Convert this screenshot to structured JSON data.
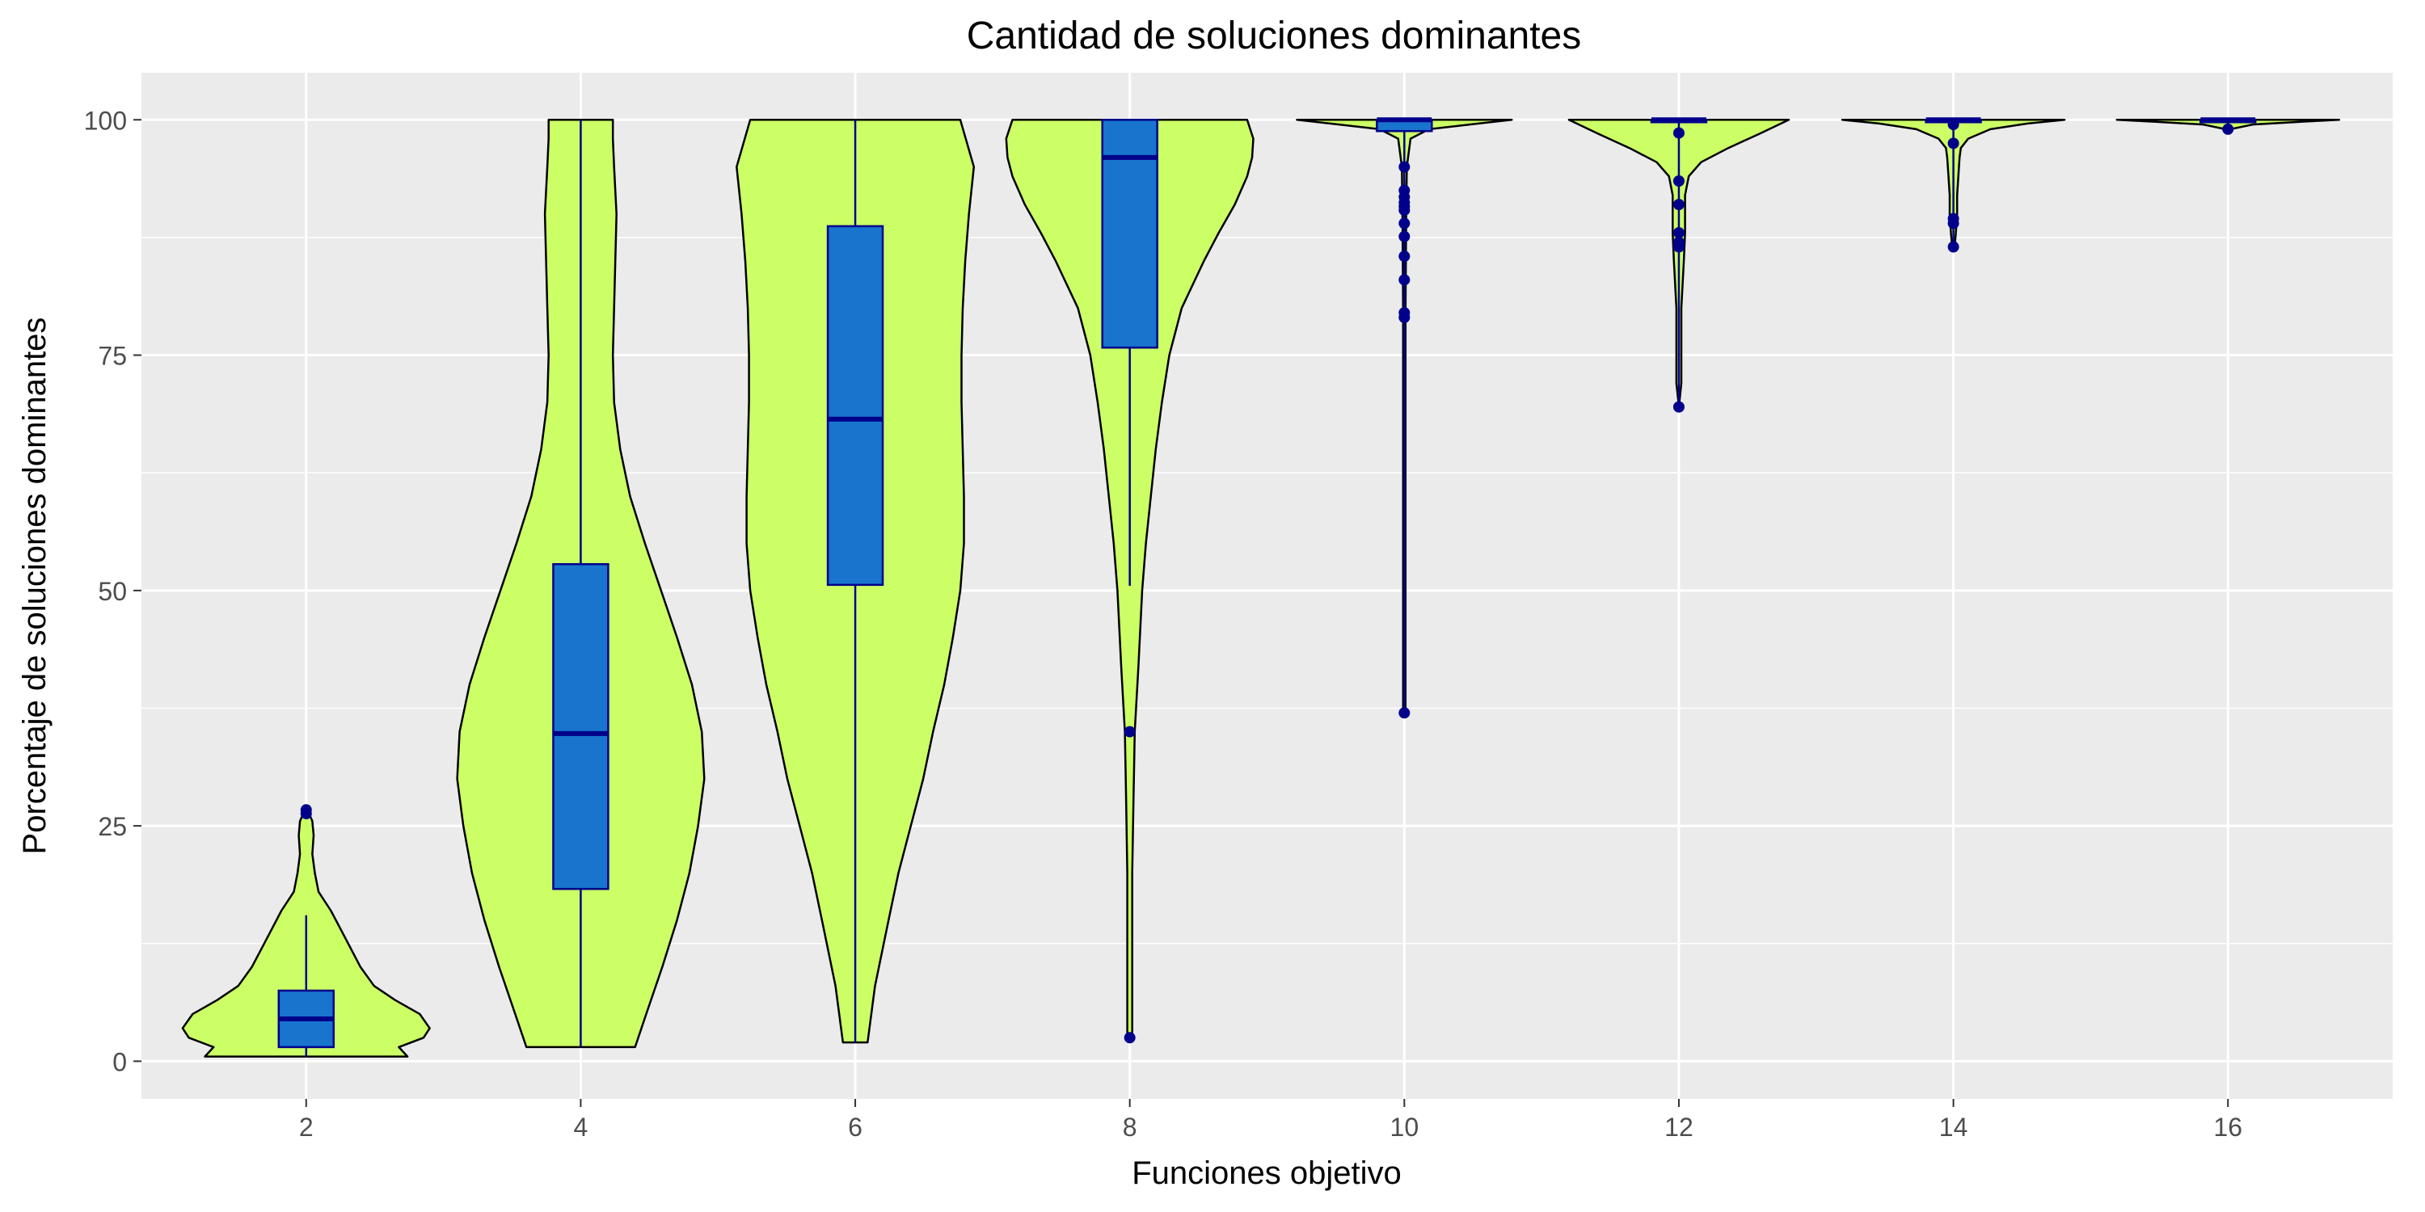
{
  "chart_data": {
    "type": "violin",
    "title": "Cantidad de soluciones dominantes",
    "xlabel": "Funciones objetivo",
    "ylabel": "Porcentaje de soluciones dominantes",
    "categories": [
      "2",
      "4",
      "6",
      "8",
      "10",
      "12",
      "14",
      "16"
    ],
    "x_ticks": [
      "2",
      "4",
      "6",
      "8",
      "10",
      "12",
      "14",
      "16"
    ],
    "y_ticks": [
      "0",
      "25",
      "50",
      "75",
      "100"
    ],
    "ylim": [
      -4,
      105
    ],
    "grid": true,
    "legend": "none",
    "colors": {
      "panel": "#ebebeb",
      "grid": "#ffffff",
      "violin_fill": "#ccff66",
      "violin_stroke": "#000000",
      "box_fill": "#1874cd",
      "box_stroke": "#00008b",
      "outlier": "#00008b"
    },
    "violins": [
      {
        "category": "2",
        "min": 0.5,
        "max": 27,
        "profile": [
          [
            0.5,
            0.82
          ],
          [
            1.5,
            0.75
          ],
          [
            2.5,
            0.95
          ],
          [
            3.5,
            1.0
          ],
          [
            5,
            0.92
          ],
          [
            6.5,
            0.72
          ],
          [
            8,
            0.55
          ],
          [
            10,
            0.44
          ],
          [
            12,
            0.36
          ],
          [
            14,
            0.28
          ],
          [
            16,
            0.2
          ],
          [
            18,
            0.1
          ],
          [
            20,
            0.07
          ],
          [
            22,
            0.05
          ],
          [
            24,
            0.06
          ],
          [
            25.5,
            0.05
          ],
          [
            27,
            0.0
          ]
        ]
      },
      {
        "category": "4",
        "min": 1.5,
        "max": 100,
        "profile": [
          [
            1.5,
            0.44
          ],
          [
            5,
            0.53
          ],
          [
            10,
            0.66
          ],
          [
            15,
            0.78
          ],
          [
            20,
            0.88
          ],
          [
            25,
            0.95
          ],
          [
            30,
            1.0
          ],
          [
            35,
            0.98
          ],
          [
            40,
            0.9
          ],
          [
            45,
            0.78
          ],
          [
            50,
            0.65
          ],
          [
            55,
            0.52
          ],
          [
            60,
            0.4
          ],
          [
            65,
            0.32
          ],
          [
            70,
            0.27
          ],
          [
            75,
            0.26
          ],
          [
            80,
            0.27
          ],
          [
            85,
            0.28
          ],
          [
            90,
            0.29
          ],
          [
            95,
            0.27
          ],
          [
            98,
            0.26
          ],
          [
            100,
            0.26
          ]
        ]
      },
      {
        "category": "6",
        "min": 2,
        "max": 100,
        "profile": [
          [
            2,
            0.1
          ],
          [
            8,
            0.16
          ],
          [
            15,
            0.27
          ],
          [
            20,
            0.35
          ],
          [
            25,
            0.45
          ],
          [
            30,
            0.55
          ],
          [
            35,
            0.63
          ],
          [
            40,
            0.72
          ],
          [
            45,
            0.79
          ],
          [
            50,
            0.85
          ],
          [
            55,
            0.88
          ],
          [
            60,
            0.88
          ],
          [
            65,
            0.87
          ],
          [
            70,
            0.86
          ],
          [
            75,
            0.86
          ],
          [
            80,
            0.87
          ],
          [
            85,
            0.89
          ],
          [
            90,
            0.92
          ],
          [
            95,
            0.96
          ],
          [
            100,
            0.85
          ]
        ]
      },
      {
        "category": "8",
        "min": 2.5,
        "max": 100,
        "profile": [
          [
            2.5,
            0.02
          ],
          [
            10,
            0.02
          ],
          [
            20,
            0.02
          ],
          [
            28,
            0.03
          ],
          [
            35,
            0.04
          ],
          [
            42,
            0.07
          ],
          [
            50,
            0.1
          ],
          [
            55,
            0.13
          ],
          [
            60,
            0.17
          ],
          [
            65,
            0.21
          ],
          [
            70,
            0.26
          ],
          [
            75,
            0.32
          ],
          [
            80,
            0.42
          ],
          [
            85,
            0.6
          ],
          [
            88,
            0.72
          ],
          [
            91,
            0.85
          ],
          [
            94,
            0.95
          ],
          [
            96,
            0.99
          ],
          [
            98,
            1.0
          ],
          [
            100,
            0.95
          ]
        ]
      },
      {
        "category": "10",
        "min": 37,
        "max": 100,
        "profile": [
          [
            37,
            0.01
          ],
          [
            50,
            0.01
          ],
          [
            70,
            0.01
          ],
          [
            80,
            0.01
          ],
          [
            90,
            0.015
          ],
          [
            95,
            0.02
          ],
          [
            98,
            0.05
          ],
          [
            99,
            0.2
          ],
          [
            99.6,
            0.6
          ],
          [
            100,
            0.87
          ]
        ]
      },
      {
        "category": "12",
        "min": 69.5,
        "max": 100,
        "profile": [
          [
            69.5,
            0.0
          ],
          [
            72,
            0.02
          ],
          [
            75,
            0.02
          ],
          [
            80,
            0.02
          ],
          [
            85,
            0.04
          ],
          [
            88,
            0.05
          ],
          [
            90,
            0.05
          ],
          [
            92,
            0.05
          ],
          [
            94,
            0.08
          ],
          [
            95.5,
            0.18
          ],
          [
            97,
            0.4
          ],
          [
            98.5,
            0.65
          ],
          [
            100,
            0.89
          ]
        ]
      },
      {
        "category": "14",
        "min": 86.5,
        "max": 100,
        "profile": [
          [
            86.5,
            0.01
          ],
          [
            88,
            0.02
          ],
          [
            90,
            0.03
          ],
          [
            92,
            0.03
          ],
          [
            94,
            0.04
          ],
          [
            96,
            0.05
          ],
          [
            97,
            0.06
          ],
          [
            98,
            0.12
          ],
          [
            99,
            0.3
          ],
          [
            99.6,
            0.6
          ],
          [
            100,
            0.9
          ]
        ]
      },
      {
        "category": "16",
        "min": 99,
        "max": 100,
        "profile": [
          [
            99,
            0.02
          ],
          [
            99.5,
            0.2
          ],
          [
            99.8,
            0.6
          ],
          [
            100,
            0.9
          ]
        ]
      }
    ],
    "boxes": [
      {
        "category": "2",
        "whisker_low": 0.5,
        "q1": 1.5,
        "median": 4.5,
        "q3": 7.5,
        "whisker_high": 15.5,
        "outliers": [
          26.3,
          26.7
        ]
      },
      {
        "category": "4",
        "whisker_low": 1.5,
        "q1": 18.3,
        "median": 34.8,
        "q3": 52.8,
        "whisker_high": 100,
        "outliers": []
      },
      {
        "category": "6",
        "whisker_low": 2,
        "q1": 50.6,
        "median": 68.2,
        "q3": 88.7,
        "whisker_high": 100,
        "outliers": []
      },
      {
        "category": "8",
        "whisker_low": 50.5,
        "q1": 75.8,
        "median": 96,
        "q3": 100,
        "whisker_high": 100,
        "outliers": [
          35,
          2.5
        ]
      },
      {
        "category": "10",
        "whisker_low": 37,
        "q1": 98.8,
        "median": 100,
        "q3": 100,
        "whisker_high": 100,
        "outliers": [
          95,
          92.5,
          91.8,
          91.2,
          90.8,
          90.4,
          89,
          87.6,
          85.5,
          83,
          79.5,
          79,
          37
        ]
      },
      {
        "category": "12",
        "whisker_low": 69.5,
        "q1": 100,
        "median": 100,
        "q3": 100,
        "whisker_high": 100,
        "outliers": [
          98.6,
          93.5,
          91,
          88,
          87,
          86.5,
          69.5
        ]
      },
      {
        "category": "14",
        "whisker_low": 86.5,
        "q1": 100,
        "median": 100,
        "q3": 100,
        "whisker_high": 100,
        "outliers": [
          99.5,
          97.5,
          89.5,
          89,
          86.5
        ]
      },
      {
        "category": "16",
        "whisker_low": 99,
        "q1": 100,
        "median": 100,
        "q3": 100,
        "whisker_high": 100,
        "outliers": [
          99
        ]
      }
    ]
  }
}
